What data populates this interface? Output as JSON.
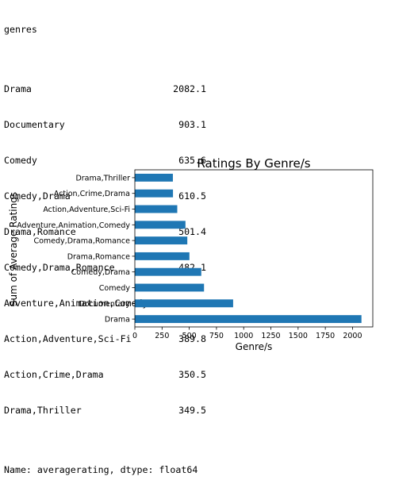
{
  "series_printout": {
    "header": "genres",
    "rows": [
      {
        "genre": "Drama",
        "value": "2082.1"
      },
      {
        "genre": "Documentary",
        "value": "903.1"
      },
      {
        "genre": "Comedy",
        "value": "635.6"
      },
      {
        "genre": "Comedy,Drama",
        "value": "610.5"
      },
      {
        "genre": "Drama,Romance",
        "value": "501.4"
      },
      {
        "genre": "Comedy,Drama,Romance",
        "value": "482.1"
      },
      {
        "genre": "Adventure,Animation,Comedy",
        "value": "465.1"
      },
      {
        "genre": "Action,Adventure,Sci-Fi",
        "value": "389.8"
      },
      {
        "genre": "Action,Crime,Drama",
        "value": "350.5"
      },
      {
        "genre": "Drama,Thriller",
        "value": "349.5"
      }
    ],
    "footer": "Name: averagerating, dtype: float64"
  },
  "chart_data": {
    "type": "bar",
    "orientation": "horizontal",
    "title": "Ratings By Genre/s",
    "xlabel": "Genre/s",
    "ylabel": "Sum of Average Ratings",
    "categories": [
      "Drama",
      "Documentary",
      "Comedy",
      "Comedy,Drama",
      "Drama,Romance",
      "Comedy,Drama,Romance",
      "Adventure,Animation,Comedy",
      "Action,Adventure,Sci-Fi",
      "Action,Crime,Drama",
      "Drama,Thriller"
    ],
    "values": [
      2082.1,
      903.1,
      635.6,
      610.5,
      501.4,
      482.1,
      465.1,
      389.8,
      350.5,
      349.5
    ],
    "xlim": [
      0,
      2186.2
    ],
    "xticks": [
      0,
      250,
      500,
      750,
      1000,
      1250,
      1500,
      1750,
      2000
    ],
    "grid": false,
    "legend": "none",
    "bar_color": "#1f77b4"
  }
}
